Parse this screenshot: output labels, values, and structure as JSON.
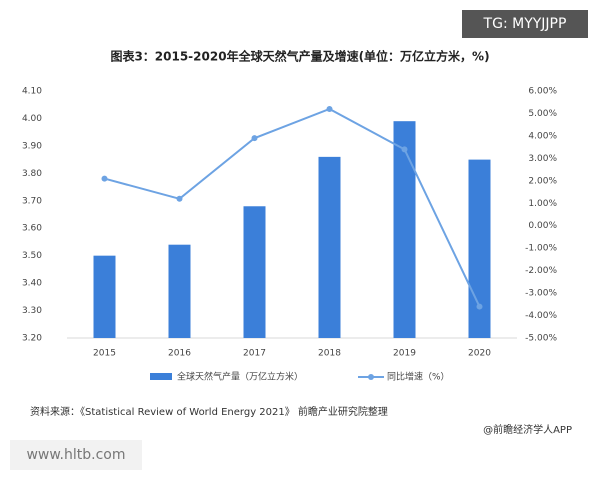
{
  "chart_data": {
    "type": "bar-line",
    "title": "图表3：2015-2020年全球天然气产量及增速(单位：万亿立方米，%)",
    "categories": [
      "2015",
      "2016",
      "2017",
      "2018",
      "2019",
      "2020"
    ],
    "series": [
      {
        "name": "全球天然气产量（万亿立方米）",
        "type": "bar",
        "color": "#3b7fd9",
        "values": [
          3.5,
          3.54,
          3.68,
          3.86,
          3.99,
          3.85
        ]
      },
      {
        "name": "同比增速（%）",
        "type": "line",
        "axis": "y2",
        "color": "#6da3e3",
        "values": [
          2.1,
          1.2,
          3.9,
          5.2,
          3.4,
          -3.6
        ]
      }
    ],
    "ylim": [
      3.2,
      4.1
    ],
    "yticks": [
      {
        "value": 3.2,
        "label": "3.20"
      },
      {
        "value": 3.3,
        "label": "3.30"
      },
      {
        "value": 3.4,
        "label": "3.40"
      },
      {
        "value": 3.5,
        "label": "3.50"
      },
      {
        "value": 3.6,
        "label": "3.60"
      },
      {
        "value": 3.7,
        "label": "3.70"
      },
      {
        "value": 3.8,
        "label": "3.80"
      },
      {
        "value": 3.9,
        "label": "3.90"
      },
      {
        "value": 4.0,
        "label": "4.00"
      },
      {
        "value": 4.1,
        "label": "4.10"
      }
    ],
    "y2lim": [
      -5,
      6
    ],
    "y2ticks": [
      {
        "value": -5,
        "label": "-5.00%"
      },
      {
        "value": -4,
        "label": "-4.00%"
      },
      {
        "value": -3,
        "label": "-3.00%"
      },
      {
        "value": -2,
        "label": "-2.00%"
      },
      {
        "value": -1,
        "label": "-1.00%"
      },
      {
        "value": 0,
        "label": "0.00%"
      },
      {
        "value": 1,
        "label": "1.00%"
      },
      {
        "value": 2,
        "label": "2.00%"
      },
      {
        "value": 3,
        "label": "3.00%"
      },
      {
        "value": 4,
        "label": "4.00%"
      },
      {
        "value": 5,
        "label": "5.00%"
      },
      {
        "value": 6,
        "label": "6.00%"
      }
    ],
    "grid": false,
    "source": "资料来源：《Statistical Review of World Energy 2021》 前瞻产业研究院整理",
    "credit": "@前瞻经济学人APP"
  },
  "overlays": [
    "TG: MYYJJPP",
    "www.hltb.com"
  ]
}
